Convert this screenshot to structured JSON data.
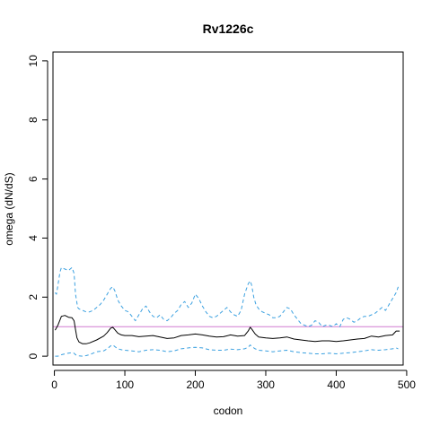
{
  "chart_data": {
    "type": "line",
    "title": "Rv1226c",
    "xlabel": "codon",
    "ylabel": "omega (dN/dS)",
    "xlim": [
      -2,
      495
    ],
    "ylim": [
      -0.3,
      10.3
    ],
    "x_ticks": [
      0,
      100,
      200,
      300,
      400,
      500
    ],
    "y_ticks": [
      0,
      2,
      4,
      6,
      8,
      10
    ],
    "reference_line": {
      "y": 1,
      "color": "#d07ad0"
    },
    "grid": false,
    "legend": "none",
    "series": [
      {
        "style": "solid",
        "color": "#000000",
        "x": [
          1,
          5,
          10,
          15,
          20,
          25,
          28,
          30,
          32,
          35,
          40,
          45,
          50,
          60,
          70,
          75,
          80,
          83,
          85,
          90,
          95,
          100,
          110,
          120,
          130,
          140,
          150,
          160,
          170,
          180,
          190,
          200,
          210,
          220,
          230,
          240,
          250,
          260,
          270,
          275,
          278,
          280,
          285,
          290,
          300,
          310,
          320,
          330,
          340,
          350,
          360,
          370,
          380,
          390,
          400,
          410,
          420,
          430,
          440,
          450,
          460,
          470,
          480,
          485,
          490
        ],
        "values": [
          0.88,
          1.05,
          1.35,
          1.38,
          1.32,
          1.3,
          1.2,
          0.9,
          0.62,
          0.48,
          0.42,
          0.42,
          0.45,
          0.55,
          0.68,
          0.8,
          0.95,
          0.98,
          0.92,
          0.78,
          0.72,
          0.7,
          0.7,
          0.66,
          0.68,
          0.7,
          0.65,
          0.6,
          0.62,
          0.7,
          0.72,
          0.75,
          0.72,
          0.68,
          0.65,
          0.66,
          0.72,
          0.68,
          0.7,
          0.85,
          0.98,
          0.92,
          0.75,
          0.65,
          0.62,
          0.6,
          0.62,
          0.65,
          0.58,
          0.55,
          0.52,
          0.5,
          0.52,
          0.52,
          0.5,
          0.52,
          0.55,
          0.58,
          0.6,
          0.68,
          0.65,
          0.7,
          0.72,
          0.85,
          0.85
        ]
      },
      {
        "style": "dashed",
        "color": "#3aa0e0",
        "x": [
          1,
          3,
          5,
          8,
          10,
          15,
          20,
          25,
          28,
          30,
          33,
          35,
          40,
          45,
          50,
          55,
          60,
          65,
          70,
          75,
          80,
          83,
          86,
          90,
          95,
          100,
          105,
          110,
          115,
          120,
          125,
          130,
          135,
          140,
          145,
          150,
          155,
          160,
          165,
          170,
          175,
          180,
          185,
          190,
          195,
          200,
          205,
          210,
          215,
          220,
          225,
          230,
          235,
          240,
          245,
          250,
          255,
          260,
          265,
          270,
          275,
          278,
          280,
          283,
          286,
          290,
          295,
          300,
          305,
          310,
          315,
          320,
          325,
          330,
          335,
          340,
          345,
          350,
          355,
          360,
          365,
          370,
          375,
          380,
          385,
          390,
          395,
          400,
          405,
          410,
          415,
          420,
          425,
          430,
          435,
          440,
          445,
          450,
          455,
          460,
          465,
          470,
          475,
          480,
          485,
          488
        ],
        "values": [
          2.15,
          2.1,
          2.4,
          2.85,
          3.0,
          2.95,
          2.9,
          3.0,
          2.8,
          2.1,
          1.65,
          1.6,
          1.55,
          1.5,
          1.5,
          1.55,
          1.65,
          1.75,
          1.9,
          2.1,
          2.3,
          2.35,
          2.2,
          1.9,
          1.7,
          1.55,
          1.5,
          1.35,
          1.2,
          1.4,
          1.6,
          1.7,
          1.5,
          1.35,
          1.3,
          1.4,
          1.25,
          1.2,
          1.3,
          1.45,
          1.55,
          1.75,
          1.85,
          1.65,
          1.8,
          2.1,
          1.95,
          1.7,
          1.5,
          1.35,
          1.3,
          1.35,
          1.45,
          1.55,
          1.65,
          1.5,
          1.4,
          1.35,
          1.55,
          2.1,
          2.45,
          2.55,
          2.4,
          2.0,
          1.75,
          1.6,
          1.5,
          1.45,
          1.4,
          1.3,
          1.3,
          1.35,
          1.5,
          1.65,
          1.6,
          1.4,
          1.25,
          1.1,
          1.05,
          1.0,
          1.05,
          1.2,
          1.15,
          1.0,
          1.05,
          1.05,
          1.0,
          1.1,
          1.0,
          1.25,
          1.3,
          1.25,
          1.15,
          1.2,
          1.3,
          1.35,
          1.35,
          1.4,
          1.45,
          1.55,
          1.65,
          1.55,
          1.75,
          1.95,
          2.15,
          2.35
        ]
      },
      {
        "style": "dashed",
        "color": "#3aa0e0",
        "x": [
          1,
          5,
          10,
          15,
          20,
          25,
          28,
          30,
          33,
          35,
          40,
          45,
          50,
          55,
          60,
          70,
          75,
          80,
          83,
          86,
          90,
          95,
          100,
          110,
          120,
          130,
          140,
          150,
          160,
          170,
          180,
          190,
          200,
          210,
          220,
          230,
          240,
          250,
          260,
          270,
          275,
          278,
          280,
          285,
          290,
          300,
          310,
          320,
          330,
          340,
          350,
          360,
          370,
          380,
          390,
          400,
          410,
          420,
          430,
          440,
          450,
          460,
          470,
          480,
          485,
          488
        ],
        "values": [
          0.0,
          0.0,
          0.05,
          0.08,
          0.1,
          0.12,
          0.1,
          0.05,
          0.02,
          0.01,
          0.0,
          0.02,
          0.05,
          0.1,
          0.15,
          0.18,
          0.25,
          0.35,
          0.38,
          0.32,
          0.25,
          0.22,
          0.2,
          0.18,
          0.15,
          0.2,
          0.22,
          0.2,
          0.15,
          0.18,
          0.25,
          0.28,
          0.3,
          0.28,
          0.22,
          0.2,
          0.2,
          0.24,
          0.22,
          0.25,
          0.3,
          0.38,
          0.33,
          0.25,
          0.2,
          0.18,
          0.15,
          0.18,
          0.2,
          0.15,
          0.12,
          0.1,
          0.08,
          0.08,
          0.1,
          0.08,
          0.1,
          0.12,
          0.15,
          0.18,
          0.22,
          0.2,
          0.22,
          0.25,
          0.28,
          0.25
        ]
      }
    ]
  }
}
